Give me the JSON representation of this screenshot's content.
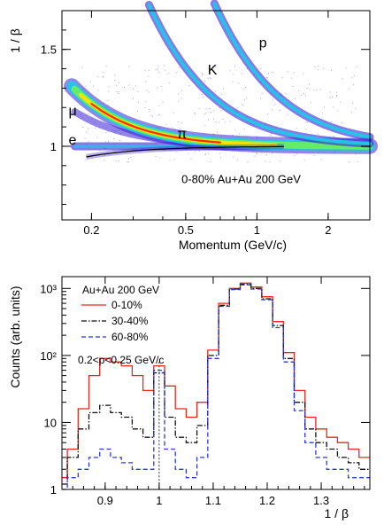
{
  "chart_data": [
    {
      "type": "heatmap",
      "xlabel": "Momentum (GeV/c)",
      "ylabel": "1 / β",
      "x_scale": "log",
      "xlim": [
        0.15,
        3.0
      ],
      "ylim": [
        0.62,
        1.7
      ],
      "x_ticks": [
        {
          "value": 0.2,
          "label": "0.2"
        },
        {
          "value": 0.5,
          "label": "0.5"
        },
        {
          "value": 1,
          "label": "1"
        },
        {
          "value": 2,
          "label": "2"
        }
      ],
      "y_ticks": [
        {
          "value": 1.0,
          "label": "1"
        },
        {
          "value": 1.5,
          "label": "1.5"
        }
      ],
      "annotations": [
        {
          "text": "p",
          "x": 1.02,
          "y": 1.51
        },
        {
          "text": "K",
          "x": 0.62,
          "y": 1.37
        },
        {
          "text": "μ",
          "x": 0.16,
          "y": 1.16
        },
        {
          "text": "π",
          "x": 0.46,
          "y": 1.04
        },
        {
          "text": "e",
          "x": 0.16,
          "y": 1.01
        },
        {
          "text": "0-80% Au+Au 200 GeV",
          "x": 0.48,
          "y": 0.81
        }
      ],
      "bands": [
        {
          "name": "e",
          "mass": 0.0,
          "color_scale": "rainbow"
        },
        {
          "name": "μ",
          "mass": 0.106
        },
        {
          "name": "π",
          "mass": 0.1396
        },
        {
          "name": "K",
          "mass": 0.4937
        },
        {
          "name": "p",
          "mass": 0.9383
        }
      ],
      "colors": {
        "low": "#3b1fd6",
        "mid": "#22c6e8",
        "high": "#ff2a00"
      }
    },
    {
      "type": "line",
      "xlabel": "1 / β",
      "ylabel": "Counts (arb. units)",
      "y_scale": "log",
      "xlim": [
        0.82,
        1.39
      ],
      "ylim": [
        1,
        1500
      ],
      "x_ticks": [
        {
          "value": 0.9,
          "label": "0.9"
        },
        {
          "value": 1.0,
          "label": "1"
        },
        {
          "value": 1.1,
          "label": "1.1"
        },
        {
          "value": 1.2,
          "label": "1.2"
        },
        {
          "value": 1.3,
          "label": "1.3"
        }
      ],
      "y_ticks": [
        {
          "value": 1,
          "label": "1"
        },
        {
          "value": 10,
          "label": "10"
        },
        {
          "value": 100,
          "label": "10²"
        },
        {
          "value": 1000,
          "label": "10³"
        }
      ],
      "legend_title": "Au+Au 200 GeV",
      "cut_label": "0.2<p<0.25 GeV/c",
      "legend_position": "top-left",
      "x": [
        0.82,
        0.84,
        0.86,
        0.88,
        0.9,
        0.92,
        0.94,
        0.96,
        0.98,
        1.0,
        1.02,
        1.04,
        1.06,
        1.08,
        1.1,
        1.12,
        1.14,
        1.16,
        1.18,
        1.2,
        1.22,
        1.24,
        1.26,
        1.28,
        1.3,
        1.32,
        1.34,
        1.36,
        1.38
      ],
      "series": [
        {
          "name": "0-10%",
          "color": "#e8281e",
          "dash": "solid",
          "values": [
            1.5,
            4,
            16,
            50,
            90,
            80,
            70,
            50,
            30,
            70,
            35,
            16,
            12,
            20,
            120,
            600,
            1000,
            1200,
            1050,
            750,
            320,
            110,
            30,
            12,
            8,
            6,
            5,
            4,
            3
          ]
        },
        {
          "name": "30-40%",
          "color": "#111111",
          "dash": "dash-dot",
          "values": [
            1.2,
            3,
            8,
            14,
            18,
            14,
            12,
            8,
            6,
            55,
            12,
            6,
            5,
            9,
            100,
            560,
            980,
            1150,
            1000,
            700,
            280,
            90,
            20,
            8,
            5,
            4,
            3,
            2.5,
            2
          ]
        },
        {
          "name": "60-80%",
          "color": "#2b39d8",
          "dash": "dashed",
          "values": [
            1,
            1.5,
            2,
            3,
            4,
            3,
            2.5,
            2,
            2,
            60,
            4,
            2,
            1.5,
            3,
            90,
            540,
            960,
            1130,
            980,
            680,
            260,
            80,
            15,
            5,
            3,
            2,
            2,
            1.5,
            1.5
          ]
        }
      ],
      "reference_line": {
        "x": 1.0,
        "style": "dotted"
      }
    }
  ]
}
